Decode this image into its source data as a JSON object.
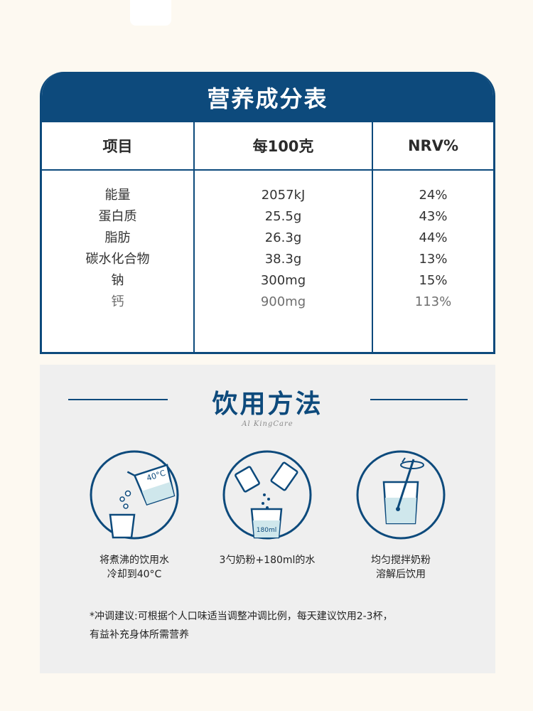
{
  "nutrition": {
    "title": "营养成分表",
    "headers": {
      "item": "项目",
      "per100": "每100克",
      "nrv": "NRV%"
    },
    "rows": [
      {
        "item": "能量",
        "value": "2057kJ",
        "nrv": "24%"
      },
      {
        "item": "蛋白质",
        "value": "25.5g",
        "nrv": "43%"
      },
      {
        "item": "脂肪",
        "value": "26.3g",
        "nrv": "44%"
      },
      {
        "item": "碳水化合物",
        "value": "38.3g",
        "nrv": "13%"
      },
      {
        "item": "钠",
        "value": "300mg",
        "nrv": "15%"
      },
      {
        "item": "钙",
        "value": "900mg",
        "nrv": "113%"
      }
    ]
  },
  "usage": {
    "title": "饮用方法",
    "subtitle": "Al KingCare",
    "steps": [
      {
        "icon": "pour-water-icon",
        "label_line1": "将煮沸的饮用水",
        "label_line2": "冷却到40°C",
        "icon_text": "40°C"
      },
      {
        "icon": "powder-sachet-icon",
        "label_line1": "3勺奶粉+180ml的水",
        "icon_text": "180ml"
      },
      {
        "icon": "stir-glass-icon",
        "label_line1": "均匀搅拌奶粉",
        "label_line2": "溶解后饮用"
      }
    ],
    "note_line1": "*冲调建议:可根据个人口味适当调整冲调比例，每天建议饮用2-3杯，",
    "note_line2": "有益补充身体所需营养"
  },
  "colors": {
    "brand_blue": "#0d4a7c",
    "bg": "#fdf9f1",
    "panel": "#efefef",
    "icon_fill": "#cfe7ec"
  }
}
